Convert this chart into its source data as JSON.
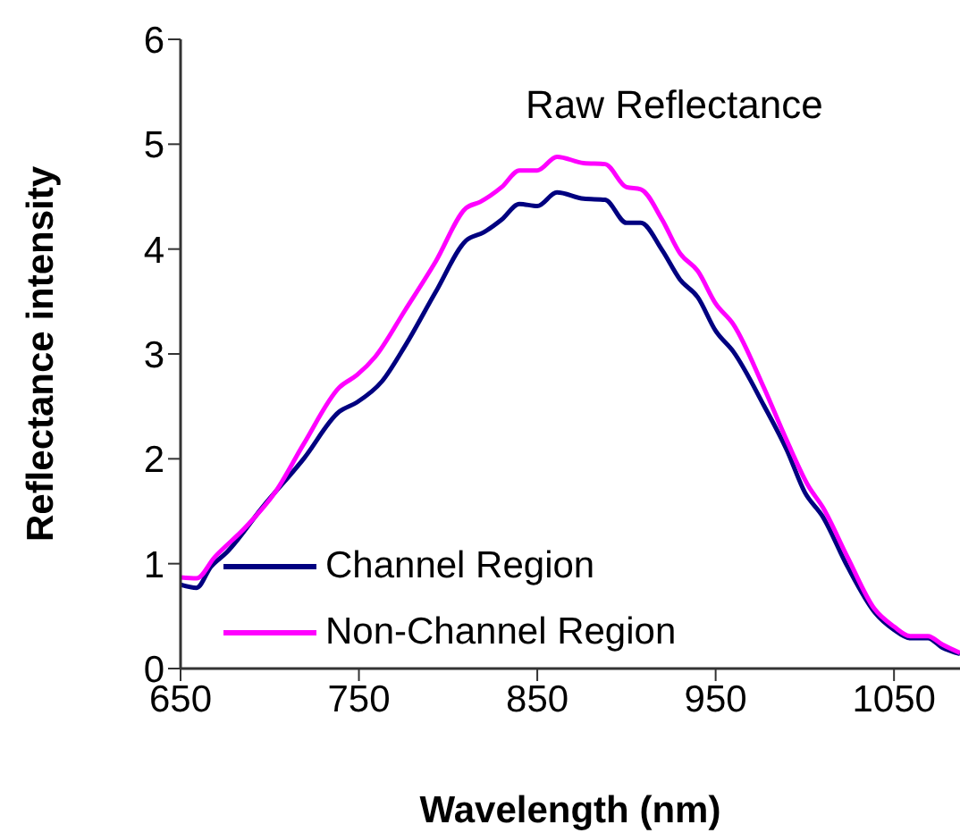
{
  "chart_data": {
    "type": "line",
    "title": "Raw Reflectance",
    "xlabel": "Wavelength (nm)",
    "ylabel": "Reflectance intensity",
    "xlim": [
      650,
      1087
    ],
    "xticks": [
      650,
      750,
      850,
      950,
      1050
    ],
    "ylim": [
      0,
      6
    ],
    "yticks": [
      0,
      1,
      2,
      3,
      4,
      5,
      6
    ],
    "grid": false,
    "legend": "bottom left",
    "marker": "none",
    "line_style": "solid",
    "series": [
      {
        "name": "Channel Region",
        "color": "#000080",
        "x": [
          650,
          659,
          667,
          676,
          696,
          719,
          739,
          749,
          763,
          776,
          793,
          810,
          820,
          830,
          840,
          850,
          861,
          876,
          888,
          900,
          908,
          920,
          930,
          940,
          950,
          960,
          977,
          990,
          1000,
          1010,
          1024,
          1039,
          1050,
          1059,
          1069,
          1077,
          1087
        ],
        "values": [
          0.8,
          0.77,
          0.97,
          1.11,
          1.54,
          2.0,
          2.45,
          2.54,
          2.74,
          3.08,
          3.59,
          4.08,
          4.16,
          4.28,
          4.43,
          4.41,
          4.54,
          4.48,
          4.47,
          4.25,
          4.25,
          3.99,
          3.71,
          3.54,
          3.22,
          3.02,
          2.51,
          2.08,
          1.68,
          1.45,
          0.97,
          0.54,
          0.37,
          0.29,
          0.29,
          0.2,
          0.14
        ]
      },
      {
        "name": "Non-Channel Region",
        "color": "#ff00ff",
        "x": [
          650,
          659,
          669,
          686,
          703,
          719,
          739,
          749,
          759,
          776,
          793,
          810,
          818,
          830,
          840,
          850,
          861,
          876,
          888,
          900,
          908,
          920,
          930,
          940,
          950,
          960,
          977,
          990,
          1002,
          1010,
          1024,
          1039,
          1050,
          1059,
          1069,
          1077,
          1087
        ],
        "values": [
          0.87,
          0.86,
          1.06,
          1.34,
          1.68,
          2.14,
          2.68,
          2.8,
          2.97,
          3.42,
          3.88,
          4.39,
          4.45,
          4.59,
          4.75,
          4.75,
          4.88,
          4.82,
          4.81,
          4.59,
          4.57,
          4.28,
          3.96,
          3.79,
          3.48,
          3.28,
          2.68,
          2.17,
          1.74,
          1.54,
          1.06,
          0.57,
          0.4,
          0.31,
          0.31,
          0.23,
          0.15
        ]
      }
    ]
  }
}
